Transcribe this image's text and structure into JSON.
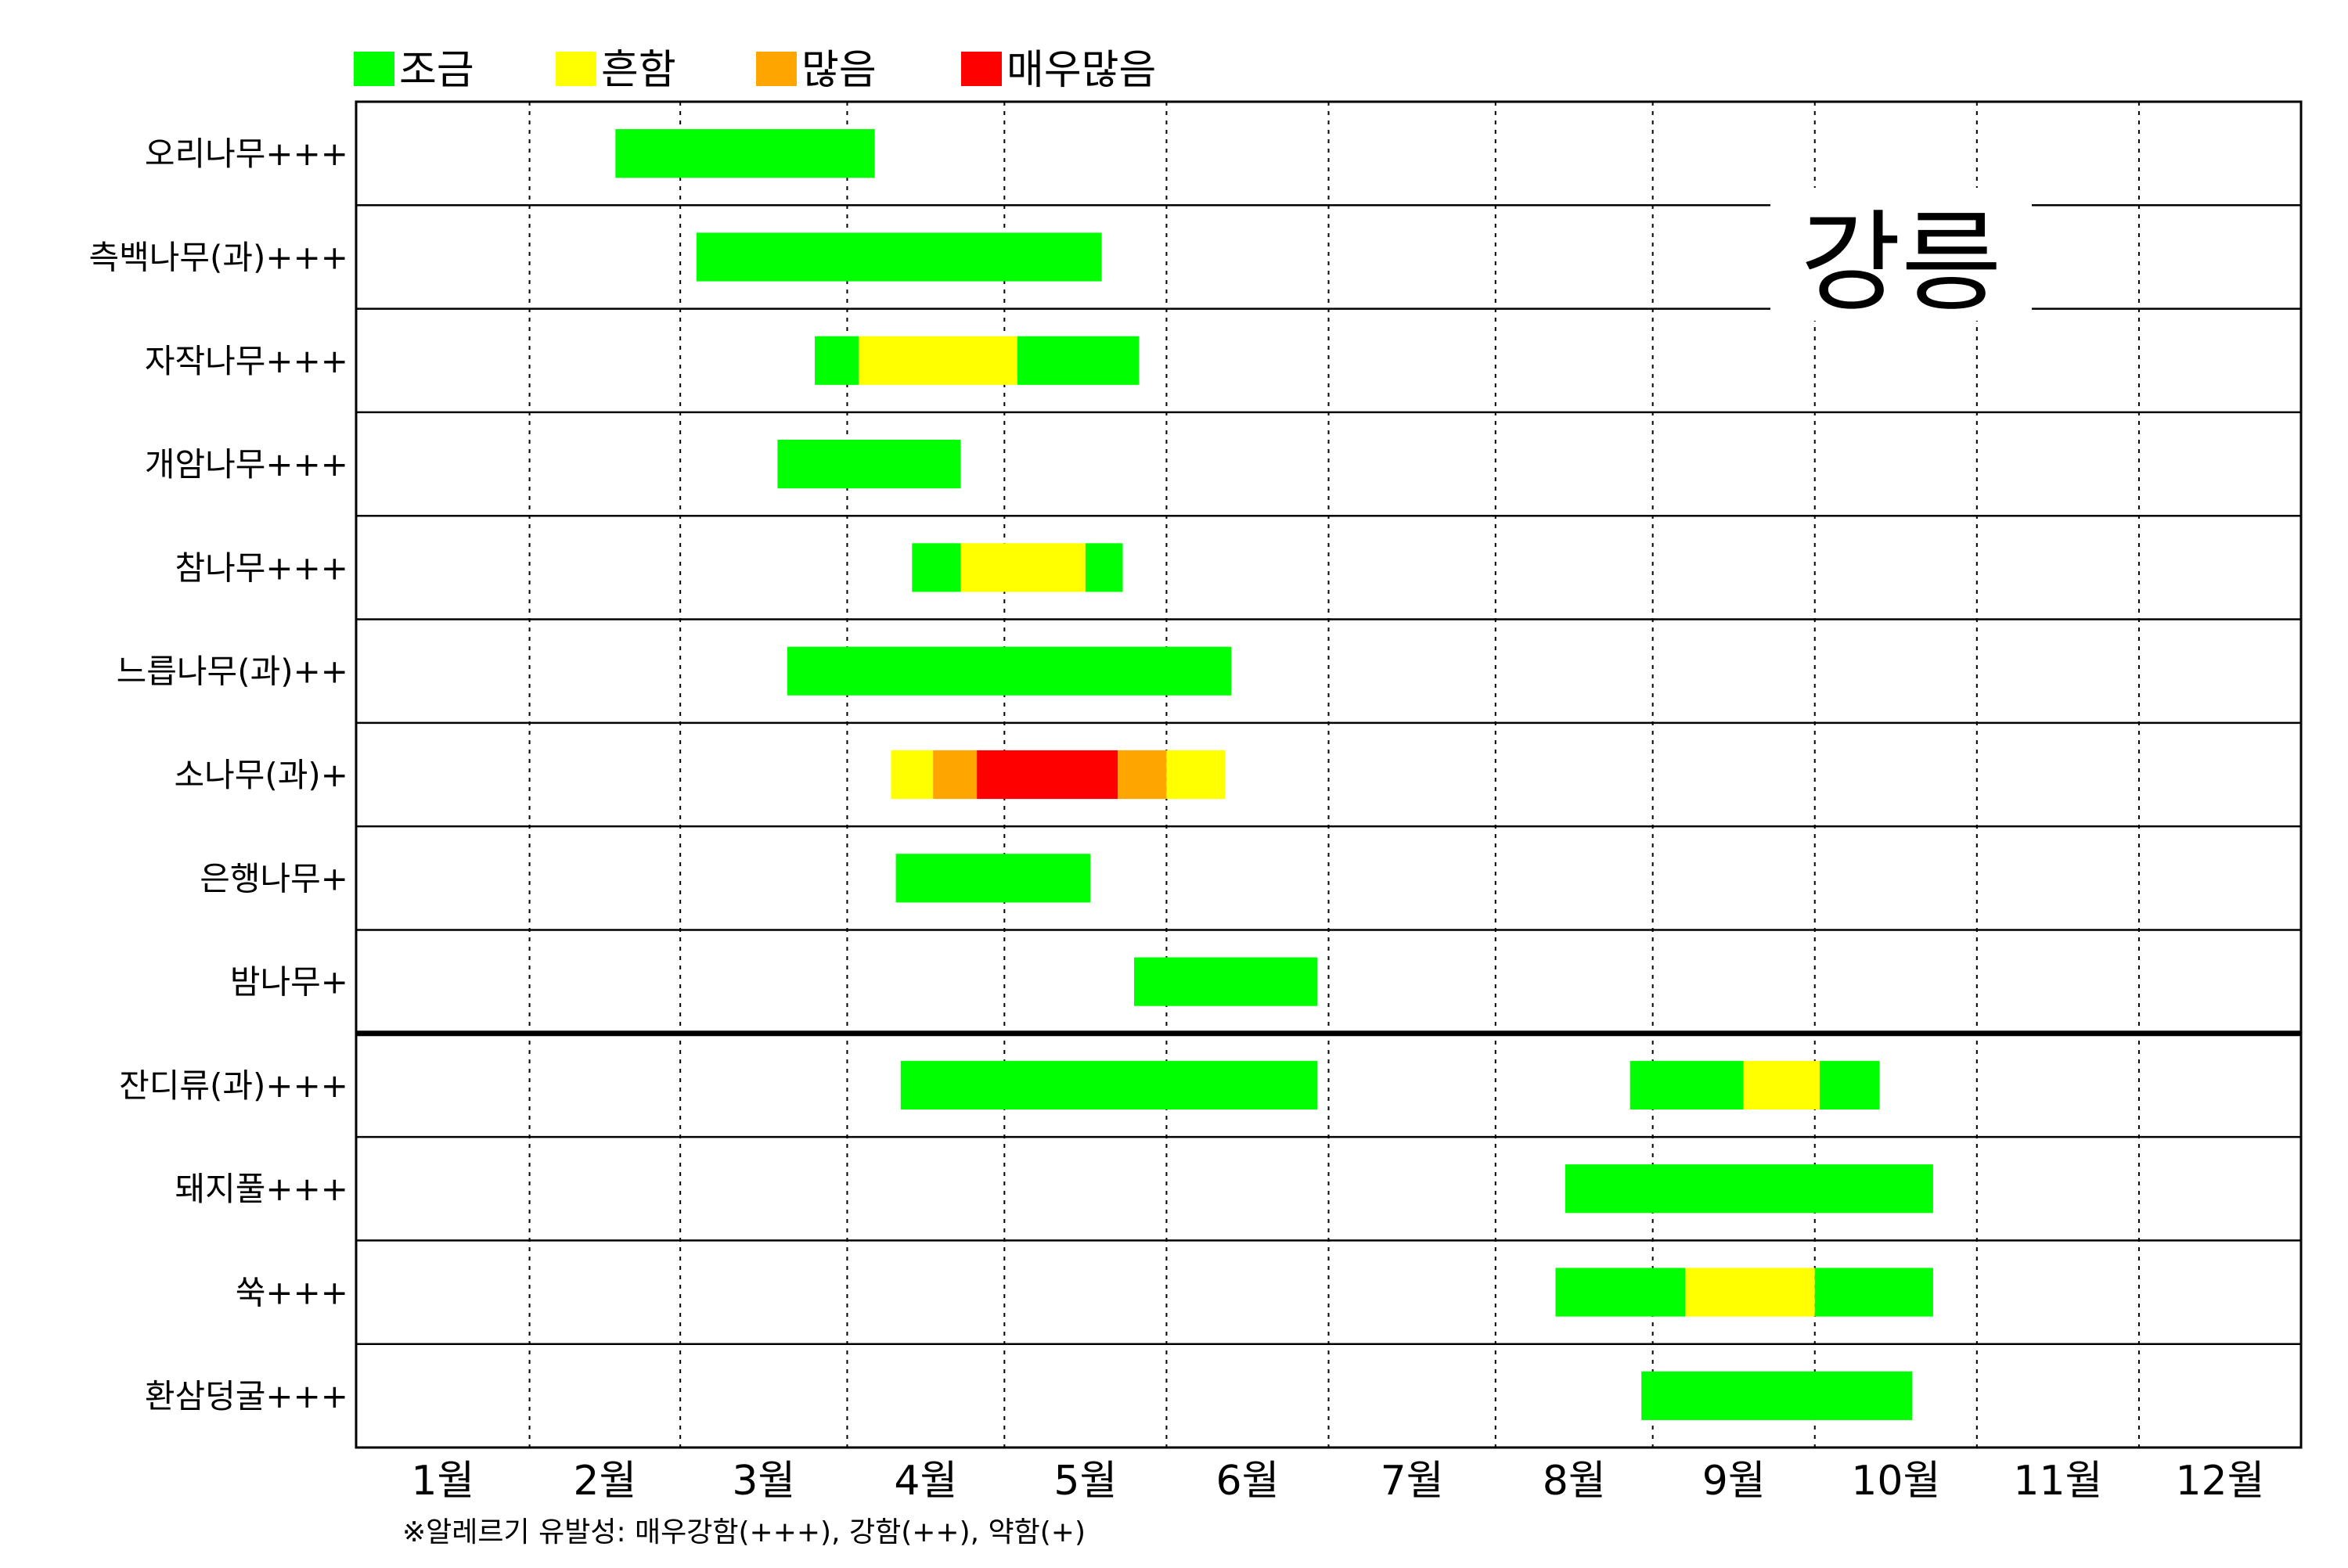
{
  "chart_data": {
    "type": "gantt",
    "title": "강릉",
    "legend": [
      {
        "label": "조금",
        "color": "#00FF00"
      },
      {
        "label": "흔함",
        "color": "#FFFF00"
      },
      {
        "label": "많음",
        "color": "#FFA500"
      },
      {
        "label": "매우많음",
        "color": "#FF0000"
      }
    ],
    "months": [
      "1월",
      "2월",
      "3월",
      "4월",
      "5월",
      "6월",
      "7월",
      "8월",
      "9월",
      "10월",
      "11월",
      "12월"
    ],
    "xlim": [
      0,
      12
    ],
    "rows": [
      {
        "label": "오리나무+++",
        "segments": [
          {
            "start": 1.6,
            "end": 3.2,
            "level": 0
          }
        ]
      },
      {
        "label": "측백나무(과)+++",
        "segments": [
          {
            "start": 2.1,
            "end": 4.6,
            "level": 0
          }
        ]
      },
      {
        "label": "자작나무+++",
        "segments": [
          {
            "start": 2.83,
            "end": 3.1,
            "level": 0
          },
          {
            "start": 3.1,
            "end": 4.08,
            "level": 1
          },
          {
            "start": 4.08,
            "end": 4.83,
            "level": 0
          }
        ]
      },
      {
        "label": "개암나무+++",
        "segments": [
          {
            "start": 2.6,
            "end": 3.73,
            "level": 0
          }
        ]
      },
      {
        "label": "참나무+++",
        "segments": [
          {
            "start": 3.43,
            "end": 3.73,
            "level": 0
          },
          {
            "start": 3.73,
            "end": 4.5,
            "level": 1
          },
          {
            "start": 4.5,
            "end": 4.73,
            "level": 0
          }
        ]
      },
      {
        "label": "느릅나무(과)++",
        "segments": [
          {
            "start": 2.66,
            "end": 5.4,
            "level": 0
          }
        ]
      },
      {
        "label": "소나무(과)+",
        "segments": [
          {
            "start": 3.3,
            "end": 3.56,
            "level": 1
          },
          {
            "start": 3.56,
            "end": 3.83,
            "level": 2
          },
          {
            "start": 3.83,
            "end": 4.7,
            "level": 3
          },
          {
            "start": 4.7,
            "end": 5.0,
            "level": 2
          },
          {
            "start": 5.0,
            "end": 5.36,
            "level": 1
          }
        ]
      },
      {
        "label": "은행나무+",
        "segments": [
          {
            "start": 3.33,
            "end": 4.53,
            "level": 0
          }
        ]
      },
      {
        "label": "밤나무+",
        "segments": [
          {
            "start": 4.8,
            "end": 5.93,
            "level": 0
          }
        ]
      },
      {
        "label": "잔디류(과)+++",
        "segments": [
          {
            "start": 3.36,
            "end": 5.93,
            "level": 0
          },
          {
            "start": 7.86,
            "end": 8.56,
            "level": 0
          },
          {
            "start": 8.56,
            "end": 9.03,
            "level": 1
          },
          {
            "start": 9.03,
            "end": 9.4,
            "level": 0
          }
        ]
      },
      {
        "label": "돼지풀+++",
        "segments": [
          {
            "start": 7.46,
            "end": 9.73,
            "level": 0
          }
        ]
      },
      {
        "label": "쑥+++",
        "segments": [
          {
            "start": 7.4,
            "end": 8.2,
            "level": 0
          },
          {
            "start": 8.2,
            "end": 9.0,
            "level": 1
          },
          {
            "start": 9.0,
            "end": 9.73,
            "level": 0
          }
        ]
      },
      {
        "label": "환삼덩굴+++",
        "segments": [
          {
            "start": 7.93,
            "end": 9.6,
            "level": 0
          }
        ]
      }
    ],
    "footnote": "※알레르기 유발성: 매우강함(+++), 강함(++), 약함(+)"
  }
}
